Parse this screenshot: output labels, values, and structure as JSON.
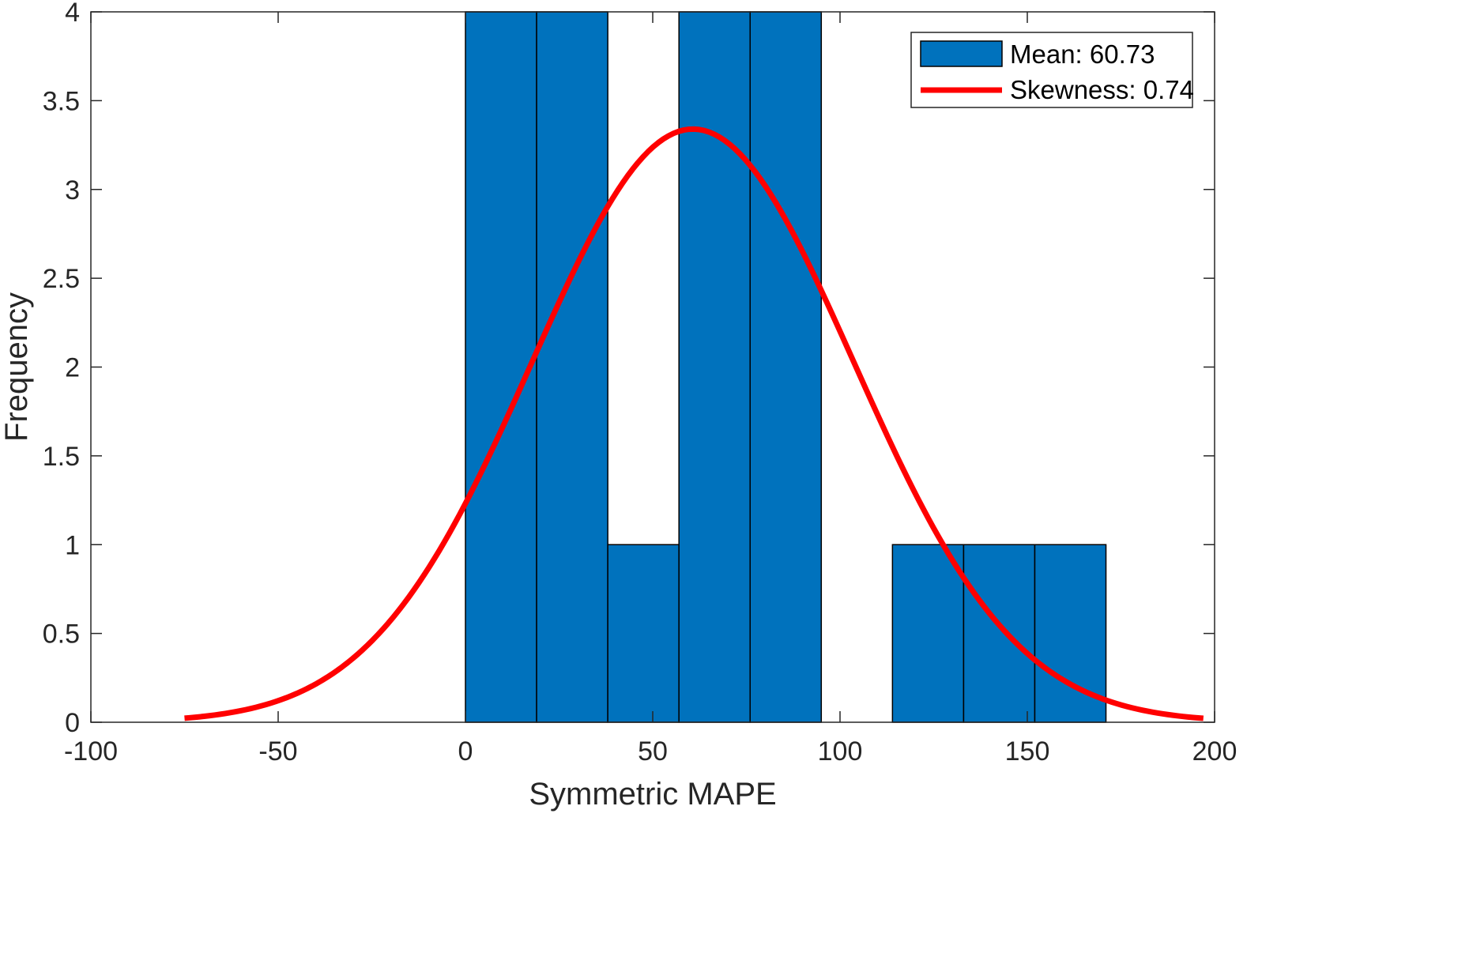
{
  "chart_data": {
    "type": "bar",
    "subtype": "histogram-with-fitted-normal-curve",
    "xlabel": "Symmetric MAPE",
    "ylabel": "Frequency",
    "xlim": [
      -100,
      200
    ],
    "ylim": [
      0,
      4
    ],
    "xticks": [
      -100,
      -50,
      0,
      50,
      100,
      150,
      200
    ],
    "yticks": [
      0,
      0.5,
      1,
      1.5,
      2,
      2.5,
      3,
      3.5,
      4
    ],
    "bin_edges": [
      0,
      19,
      38,
      57,
      76,
      95,
      114,
      133,
      152,
      171
    ],
    "bar_values": [
      4,
      4,
      1,
      4,
      4,
      0,
      1,
      1,
      1
    ],
    "fit_curve": {
      "distribution": "normal",
      "mean": 60.73,
      "std": 43,
      "scale_area": 360,
      "x_range": [
        -75,
        197
      ]
    },
    "grid": false,
    "legend": {
      "placement": "top-right",
      "entries": [
        {
          "label": "Mean: 60.73",
          "kind": "patch"
        },
        {
          "label": "Skewness: 0.74",
          "kind": "line"
        }
      ]
    },
    "colors": {
      "bar_fill": "#0072BD",
      "bar_edge": "#000000",
      "curve": "#FF0000",
      "axis": "#262626"
    }
  }
}
